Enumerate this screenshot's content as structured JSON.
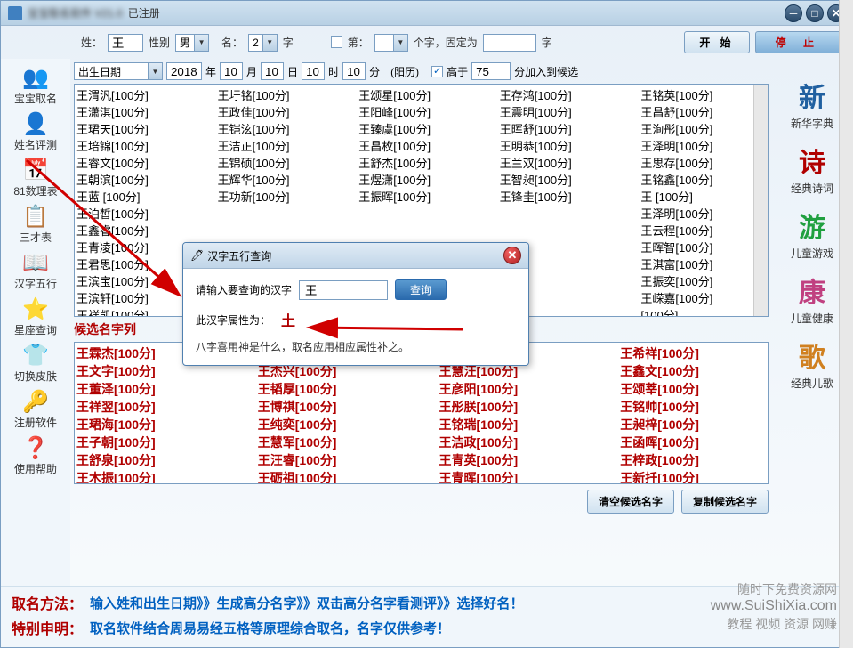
{
  "titlebar": {
    "title_blur": "宝宝取名软件 V21.0",
    "registered": "已注册"
  },
  "form1": {
    "surname_label": "姓：",
    "surname_value": "王",
    "gender_label": "性别",
    "gender_value": "男",
    "given_label": "名：",
    "given_count": "2",
    "given_suffix": "字",
    "di_label": "第：",
    "di_value": "",
    "fixed_label": "个字，固定为",
    "fixed_value": "",
    "fixed_suffix": "字",
    "start": "开  始",
    "stop": "停  止"
  },
  "form2": {
    "birth_label": "出生日期",
    "year": "2018",
    "year_suffix": "年",
    "month": "10",
    "month_suffix": "月",
    "day": "10",
    "day_suffix": "日",
    "hour": "10",
    "hour_suffix": "时",
    "minute": "10",
    "minute_suffix": "分",
    "calendar": "(阳历)",
    "score_check": "高于",
    "score_value": "75",
    "score_suffix": "分加入到候选"
  },
  "sidebar": [
    {
      "icon": "👥",
      "label": "宝宝取名",
      "color": "#4080c0"
    },
    {
      "icon": "👤",
      "label": "姓名评测",
      "color": "#4080c0"
    },
    {
      "icon": "📅",
      "label": "81数理表",
      "color": "#4472c4"
    },
    {
      "icon": "📋",
      "label": "三才表",
      "color": "#4472c4"
    },
    {
      "icon": "📖",
      "label": "汉字五行",
      "color": "#e8d898"
    },
    {
      "icon": "⭐",
      "label": "星座查询",
      "color": "#f0c020"
    },
    {
      "icon": "👕",
      "label": "切换皮肤",
      "color": "#60c0e0"
    },
    {
      "icon": "🔑",
      "label": "注册软件",
      "color": "#f0a020"
    },
    {
      "icon": "❓",
      "label": "使用帮助",
      "color": "#2060a0"
    }
  ],
  "names_top": [
    "王渭汎[100分]",
    "王圩铭[100分]",
    "王颂星[100分]",
    "王存鸿[100分]",
    "王铭英[100分]",
    "王潇淇[100分]",
    "王政佳[100分]",
    "王阳峰[100分]",
    "王震明[100分]",
    "王昌舒[100分]",
    "王珺天[100分]",
    "王铠泫[100分]",
    "王臻虞[100分]",
    "王晖舒[100分]",
    "王洵彤[100分]",
    "王培锦[100分]",
    "王洁正[100分]",
    "王昌枚[100分]",
    "王明恭[100分]",
    "王泽明[100分]",
    "王睿文[100分]",
    "王锦硕[100分]",
    "王舒杰[100分]",
    "王兰双[100分]",
    "王思存[100分]",
    "王朝滨[100分]",
    "王辉华[100分]",
    "王煜潇[100分]",
    "王智昶[100分]",
    "王铭鑫[100分]",
    "王蓝   [100分]",
    "王功新[100分]",
    "王振晖[100分]",
    "王锋圭[100分]",
    "王   [100分]",
    "王泊皙[100分]",
    "",
    "",
    "",
    "王泽明[100分]",
    "王鑫睿[100分]",
    "",
    "",
    "",
    "王云程[100分]",
    "王青凌[100分]",
    "",
    "",
    "",
    "王晖智[100分]",
    "王君思[100分]",
    "",
    "",
    "",
    "王淇富[100分]",
    "王滨宝[100分]",
    "",
    "",
    "",
    "王振奕[100分]",
    "王滨轩[100分]",
    "",
    "",
    "",
    "王嵘嘉[100分]",
    "王祥凯[100分]",
    "",
    "",
    "",
    "[100分]"
  ],
  "candidate_label": "候选名字列",
  "names_cand": [
    "王霖杰[100分]",
    "王 旭智[100分]",
    "王扬晋[100分]",
    "王希祥[100分]",
    "王文字[100分]",
    "王杰兴[100分]",
    "王慧汪[100分]",
    "王鑫文[100分]",
    "王董泽[100分]",
    "王韬厚[100分]",
    "王彦阳[100分]",
    "王颂莘[100分]",
    "王祥翌[100分]",
    "王博祺[100分]",
    "王彤朕[100分]",
    "王铭帅[100分]",
    "王珺海[100分]",
    "王纯奕[100分]",
    "王铭瑞[100分]",
    "王昶梓[100分]",
    "王子朝[100分]",
    "王慧军[100分]",
    "王洁政[100分]",
    "王函晖[100分]",
    "王舒泉[100分]",
    "王汪睿[100分]",
    "王青英[100分]",
    "王梓政[100分]",
    "王木振[100分]",
    "王砺祖[100分]",
    "王青晖[100分]",
    "王新扦[100分]"
  ],
  "cand_buttons": {
    "clear": "清空候选名字",
    "copy": "复制候选名字"
  },
  "right_sidebar": [
    {
      "glyph": "新",
      "label": "新华字典",
      "color": "#2060a0"
    },
    {
      "glyph": "诗",
      "label": "经典诗词",
      "color": "#b00000"
    },
    {
      "glyph": "游",
      "label": "儿童游戏",
      "color": "#20a040"
    },
    {
      "glyph": "康",
      "label": "儿童健康",
      "color": "#c04080"
    },
    {
      "glyph": "歌",
      "label": "经典儿歌",
      "color": "#d08020"
    }
  ],
  "footer": {
    "line1_key": "取名方法：",
    "line1_text": "输入姓和出生日期》》生成高分名字》》双击高分名字看测评》》选择好名！",
    "line2_key": "特别申明：",
    "line2_text": "取名软件结合周易易经五格等原理综合取名，名字仅供参考！"
  },
  "watermark": {
    "line1": "随时下免费资源网",
    "line2": "教程 视频 资源 网赚",
    "url": "www.SuiShiXia.com"
  },
  "dialog": {
    "title": "汉字五行查询",
    "prompt": "请输入要查询的汉字",
    "input_value": "王",
    "query_btn": "查询",
    "result_label": "此汉字属性为：",
    "result_value": "土",
    "hint": "八字喜用神是什么，取名应用相应属性补之。"
  }
}
